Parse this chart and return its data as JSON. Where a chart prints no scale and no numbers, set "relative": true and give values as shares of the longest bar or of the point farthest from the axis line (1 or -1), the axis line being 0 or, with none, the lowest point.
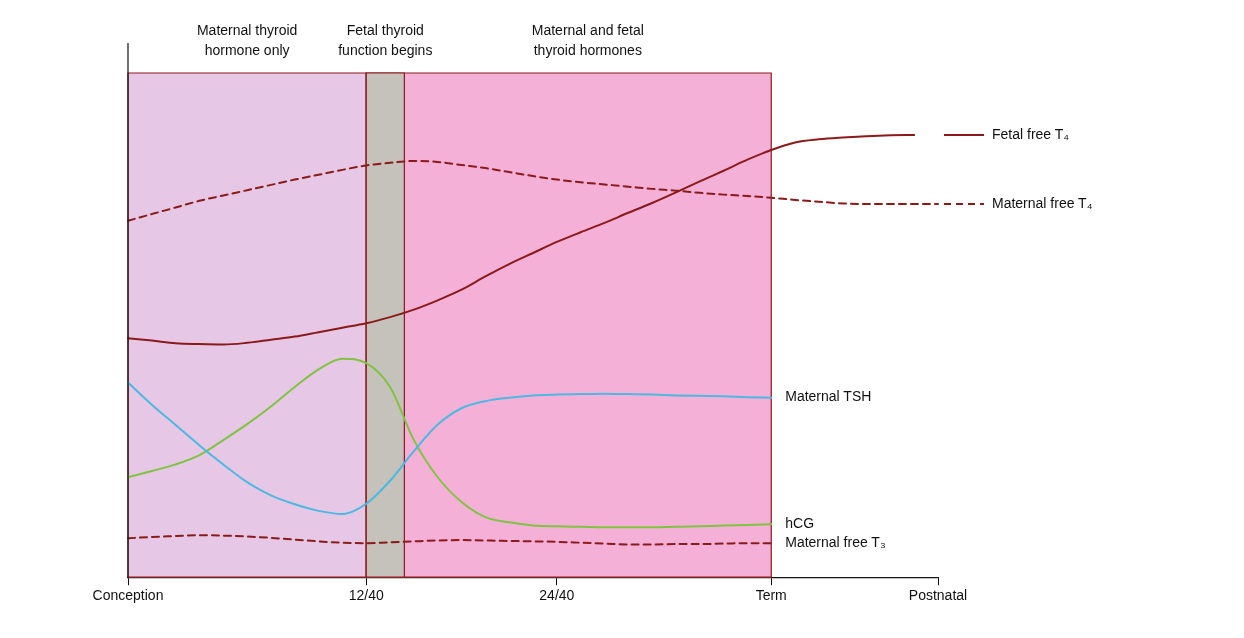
{
  "chart_data": {
    "type": "line",
    "relative": true,
    "legend": "right",
    "grid": false,
    "marker": "none",
    "annotations": [
      "Fetal thyroid function begins",
      "Maternal and fetal thyroid hormones"
    ],
    "categories": [
      "Conception",
      null,
      null,
      null,
      null,
      null,
      null,
      null,
      null,
      null,
      "12/40",
      null,
      null,
      null,
      null,
      null,
      null,
      null,
      "24/40",
      null,
      null,
      null,
      null,
      null,
      null,
      null,
      null,
      "Term",
      null,
      null,
      null,
      null,
      null,
      null,
      "Postnatal"
    ],
    "bands": [
      {
        "axis": "x",
        "from": "Conception",
        "to": "12/40",
        "label": "Maternal thyroid hormone only",
        "color": "#e6c8e6"
      },
      {
        "axis": "x",
        "from": "12/40",
        "to": "Term",
        "color": "#f5b0d8"
      }
    ],
    "series": [
      {
        "name": "Fetal free T₄",
        "color": "#8b1a1a",
        "line_style": "solid",
        "values": [
          0.54,
          0.535,
          0.529,
          0.527,
          0.526,
          0.53,
          0.537,
          0.544,
          0.554,
          0.564,
          0.574,
          0.588,
          0.605,
          0.626,
          0.65,
          0.68,
          0.708,
          0.733,
          0.758,
          0.78,
          0.801,
          0.824,
          0.846,
          0.87,
          0.895,
          0.919,
          0.944,
          0.966,
          0.983,
          0.99,
          0.994,
          0.997,
          0.999,
          1,
          null
        ]
      },
      {
        "name": "Maternal free T₄",
        "color": "#8b1a1a",
        "line_style": "dashed",
        "values": [
          0.806,
          0.821,
          0.836,
          0.851,
          0.863,
          0.875,
          0.887,
          0.899,
          0.91,
          0.921,
          0.931,
          0.937,
          0.941,
          0.939,
          0.932,
          0.925,
          0.916,
          0.907,
          0.899,
          0.893,
          0.888,
          0.883,
          0.878,
          0.874,
          0.869,
          0.865,
          0.862,
          0.858,
          0.853,
          0.849,
          0.845,
          0.844,
          0.844,
          0.844,
          0.844
        ]
      },
      {
        "name": "Maternal TSH",
        "color": "#4db8e0",
        "line_style": "solid",
        "values": [
          0.44,
          0.39,
          0.344,
          0.298,
          0.255,
          0.215,
          0.185,
          0.165,
          0.15,
          0.143,
          0.166,
          0.218,
          0.285,
          0.345,
          0.382,
          0.398,
          0.406,
          0.411,
          0.413,
          0.414,
          0.415,
          0.414,
          0.413,
          0.411,
          0.41,
          0.409,
          0.407,
          0.406,
          null,
          null,
          null,
          null,
          null,
          null,
          null
        ]
      },
      {
        "name": "hCG",
        "color": "#80c342",
        "line_style": "solid",
        "values": [
          0.226,
          0.24,
          0.255,
          0.276,
          0.31,
          0.346,
          0.386,
          0.43,
          0.47,
          0.494,
          0.484,
          0.43,
          0.31,
          0.226,
          0.17,
          0.136,
          0.124,
          0.117,
          0.115,
          0.114,
          0.113,
          0.113,
          0.113,
          0.114,
          0.115,
          0.117,
          0.118,
          0.12,
          null,
          null,
          null,
          null,
          null,
          null,
          null
        ]
      },
      {
        "name": "Maternal free T₃",
        "color": "#8b1a1a",
        "line_style": "dashed",
        "values": [
          0.088,
          0.091,
          0.093,
          0.095,
          0.094,
          0.092,
          0.089,
          0.085,
          0.081,
          0.078,
          0.077,
          0.079,
          0.081,
          0.083,
          0.084,
          0.083,
          0.082,
          0.081,
          0.08,
          0.078,
          0.076,
          0.074,
          0.074,
          0.075,
          0.075,
          0.076,
          0.077,
          0.077,
          null,
          null,
          null,
          null,
          null,
          null,
          null
        ]
      }
    ]
  }
}
